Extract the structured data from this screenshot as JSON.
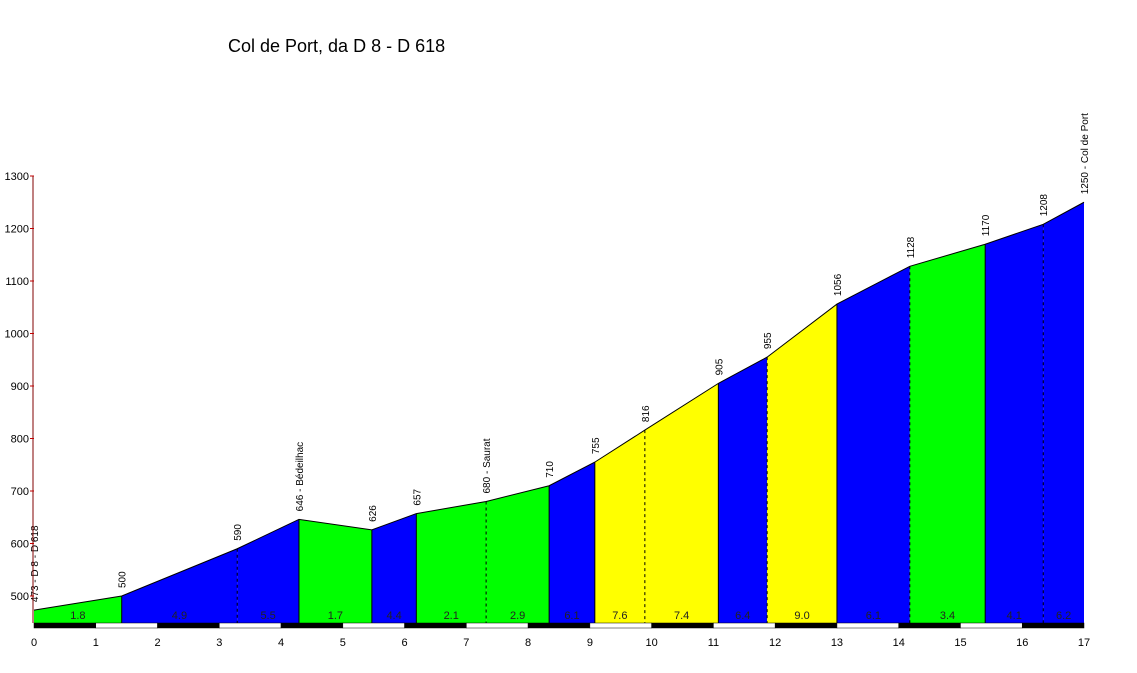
{
  "chart_data": {
    "type": "area",
    "title": "Col de Port, da D 8 - D 618",
    "xlabel": "",
    "ylabel": "",
    "xlim": [
      0,
      17
    ],
    "ylim": [
      448,
      1300
    ],
    "x_ticks": [
      0,
      1,
      2,
      3,
      4,
      5,
      6,
      7,
      8,
      9,
      10,
      11,
      12,
      13,
      14,
      15,
      16,
      17
    ],
    "y_ticks": [
      500,
      600,
      700,
      800,
      900,
      1000,
      1100,
      1200,
      1300
    ],
    "points": [
      {
        "km": 0,
        "elev": 473,
        "label": "473 - D 8 - D 618"
      },
      {
        "km": 1.42,
        "elev": 500,
        "label": "500"
      },
      {
        "km": 3.29,
        "elev": 590,
        "label": "590"
      },
      {
        "km": 4.29,
        "elev": 646,
        "label": "646 - Bédeilhac"
      },
      {
        "km": 5.47,
        "elev": 626,
        "label": "626"
      },
      {
        "km": 6.19,
        "elev": 657,
        "label": "657"
      },
      {
        "km": 7.32,
        "elev": 680,
        "label": "680 - Saurat"
      },
      {
        "km": 8.34,
        "elev": 710,
        "label": "710"
      },
      {
        "km": 9.08,
        "elev": 755,
        "label": "755"
      },
      {
        "km": 9.89,
        "elev": 816,
        "label": "816"
      },
      {
        "km": 11.08,
        "elev": 905,
        "label": "905"
      },
      {
        "km": 11.87,
        "elev": 955,
        "label": "955"
      },
      {
        "km": 13.0,
        "elev": 1056,
        "label": "1056"
      },
      {
        "km": 14.18,
        "elev": 1128,
        "label": "1128"
      },
      {
        "km": 15.4,
        "elev": 1170,
        "label": "1170"
      },
      {
        "km": 16.34,
        "elev": 1208,
        "label": "1208"
      },
      {
        "km": 17,
        "elev": 1250,
        "label": "1250 - Col de Port"
      }
    ],
    "segments": [
      {
        "grade": "1.8",
        "color": "#00ff00"
      },
      {
        "grade": "4.9",
        "color": "#0000ff"
      },
      {
        "grade": "5.5",
        "color": "#0000ff"
      },
      {
        "grade": "1.7",
        "color": "#00ff00"
      },
      {
        "grade": "4.4",
        "color": "#0000ff"
      },
      {
        "grade": "2.1",
        "color": "#00ff00"
      },
      {
        "grade": "2.9",
        "color": "#00ff00"
      },
      {
        "grade": "6.1",
        "color": "#0000ff"
      },
      {
        "grade": "7.6",
        "color": "#ffff00"
      },
      {
        "grade": "7.4",
        "color": "#ffff00"
      },
      {
        "grade": "6.4",
        "color": "#0000ff"
      },
      {
        "grade": "9.0",
        "color": "#ffff00"
      },
      {
        "grade": "6.1",
        "color": "#0000ff"
      },
      {
        "grade": "3.4",
        "color": "#00ff00"
      },
      {
        "grade": "4.1",
        "color": "#0000ff"
      },
      {
        "grade": "6.2",
        "color": "#0000ff"
      }
    ],
    "dashed_dividers_at_points": [
      2,
      6,
      9,
      11,
      13,
      15
    ]
  }
}
